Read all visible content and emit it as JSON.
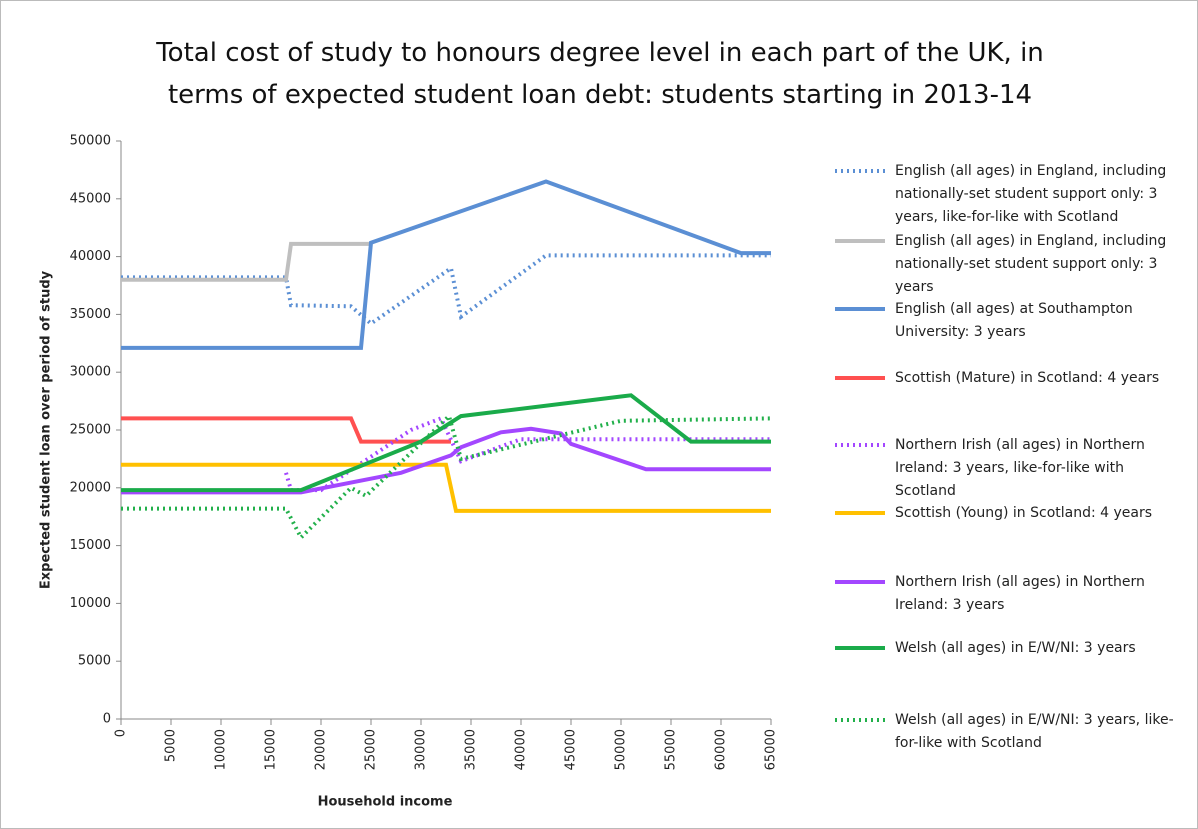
{
  "chart_data": {
    "type": "line",
    "title": "Total cost of study to honours degree level in each part of the UK, in terms of expected student loan debt:  students starting in 2013-14",
    "x_label": "Household income",
    "y_label": "Expected student loan over period of study",
    "xlim": [
      0,
      65000
    ],
    "xticks": [
      0,
      5000,
      10000,
      15000,
      20000,
      25000,
      30000,
      35000,
      40000,
      45000,
      50000,
      55000,
      60000,
      65000
    ],
    "ylim": [
      0,
      50000
    ],
    "yticks": [
      0,
      5000,
      10000,
      15000,
      20000,
      25000,
      30000,
      35000,
      40000,
      45000,
      50000
    ],
    "legend": "right",
    "series": [
      {
        "name": "English (all ages) in England, including nationally-set student support only: 3 years, like-for-like with Scotland",
        "color": "#5b8fd4",
        "style": "dotted",
        "x": [
          0,
          16500,
          17000,
          23000,
          25000,
          33000,
          34000,
          42500,
          65000
        ],
        "values": [
          38200,
          38200,
          35800,
          35700,
          34200,
          39000,
          34800,
          40100,
          40100
        ]
      },
      {
        "name": "English (all ages) in England, including nationally-set student support only: 3 years",
        "color": "#bfbfbf",
        "style": "solid",
        "x": [
          0,
          16500,
          17000,
          25000
        ],
        "values": [
          38000,
          38000,
          41100,
          41100
        ]
      },
      {
        "name": "English (all ages) at Southampton University: 3 years",
        "color": "#5b8fd4",
        "style": "solid",
        "x": [
          0,
          24000,
          25000,
          42500,
          62000,
          65000
        ],
        "values": [
          32100,
          32100,
          41200,
          46500,
          40300,
          40300
        ]
      },
      {
        "name": "Scottish  (Mature) in Scotland: 4 years",
        "color": "#ff5050",
        "style": "solid",
        "x": [
          0,
          23000,
          24000,
          33000
        ],
        "values": [
          26000,
          26000,
          24000,
          24000
        ]
      },
      {
        "name": "Northern Irish (all ages) in Northern Ireland: 3 years, like-for-like with Scotland",
        "color": "#a347ff",
        "style": "dotted",
        "x": [
          16500,
          17000,
          20000,
          29000,
          32000,
          34000,
          40000,
          65000
        ],
        "values": [
          21300,
          19800,
          19800,
          25000,
          26000,
          22300,
          24200,
          24200
        ]
      },
      {
        "name": "Scottish (Young) in Scotland: 4 years",
        "color": "#ffc000",
        "style": "solid",
        "x": [
          0,
          32500,
          33500,
          65000
        ],
        "values": [
          22000,
          22000,
          18000,
          18000
        ]
      },
      {
        "name": "Northern Irish (all ages) in Northern Ireland: 3 years",
        "color": "#a347ff",
        "style": "solid",
        "x": [
          0,
          18000,
          28000,
          33000,
          34000,
          38000,
          41000,
          44000,
          45000,
          52500,
          65000
        ],
        "values": [
          19600,
          19600,
          21300,
          22800,
          23500,
          24800,
          25100,
          24700,
          23800,
          21600,
          21600
        ]
      },
      {
        "name": "Welsh (all ages) in E/W/NI: 3 years",
        "color": "#1aab4a",
        "style": "solid",
        "x": [
          0,
          18000,
          30000,
          34000,
          50000,
          51000,
          57000,
          65000
        ],
        "values": [
          19800,
          19800,
          24000,
          26200,
          27900,
          28000,
          24000,
          24000
        ]
      },
      {
        "name": "Welsh (all ages) in E/W/NI: 3 years,  like-for-like with Scotland",
        "color": "#22b04b",
        "style": "dotted",
        "x": [
          0,
          16500,
          18000,
          23000,
          24500,
          32800,
          34000,
          50000,
          65000
        ],
        "values": [
          18200,
          18200,
          15700,
          20000,
          19300,
          26200,
          22500,
          25800,
          26000
        ]
      }
    ]
  }
}
